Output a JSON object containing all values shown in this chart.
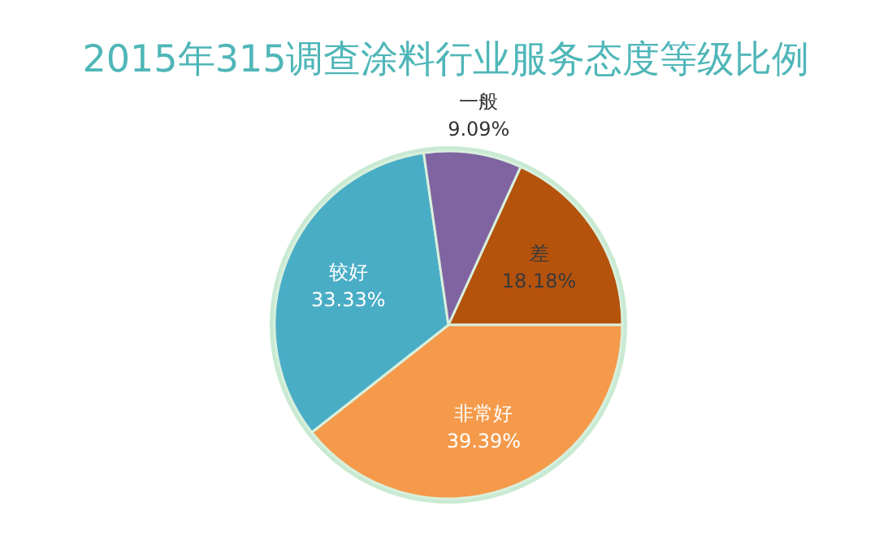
{
  "chart_data": {
    "type": "pie",
    "title": "2015年315调查涂料行业服务态度等级比例",
    "categories": [
      "差",
      "非常好",
      "较好",
      "一般"
    ],
    "values": [
      18.18,
      39.39,
      33.33,
      9.09
    ],
    "colors": [
      "#b5520c",
      "#f59a4b",
      "#4aadc6",
      "#8064a2"
    ],
    "value_labels": [
      "18.18%",
      "39.39%",
      "33.33%",
      "9.09%"
    ],
    "legend": false
  }
}
